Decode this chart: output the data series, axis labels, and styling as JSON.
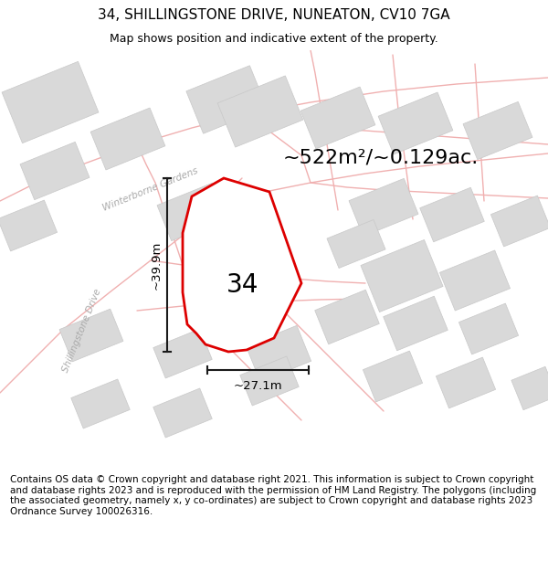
{
  "title": "34, SHILLINGSTONE DRIVE, NUNEATON, CV10 7GA",
  "subtitle": "Map shows position and indicative extent of the property.",
  "footer": "Contains OS data © Crown copyright and database right 2021. This information is subject to Crown copyright and database rights 2023 and is reproduced with the permission of HM Land Registry. The polygons (including the associated geometry, namely x, y co-ordinates) are subject to Crown copyright and database rights 2023 Ordnance Survey 100026316.",
  "area_label": "~522m²/~0.129ac.",
  "width_label": "~27.1m",
  "height_label": "~39.9m",
  "number_label": "34",
  "map_bg": "#f5f5f5",
  "building_color": "#d9d9d9",
  "building_edge": "#c8c8c8",
  "road_line_color": "#f0b0b0",
  "plot_fill": "#ffffff",
  "plot_edge": "#dd0000",
  "street_label1": "Winterborne Gardens",
  "street_label2": "Shillingstone Drive",
  "dim_line_color": "#1a1a1a",
  "title_fontsize": 11,
  "subtitle_fontsize": 9,
  "footer_fontsize": 7.5,
  "number_fontsize": 20,
  "area_fontsize": 16
}
